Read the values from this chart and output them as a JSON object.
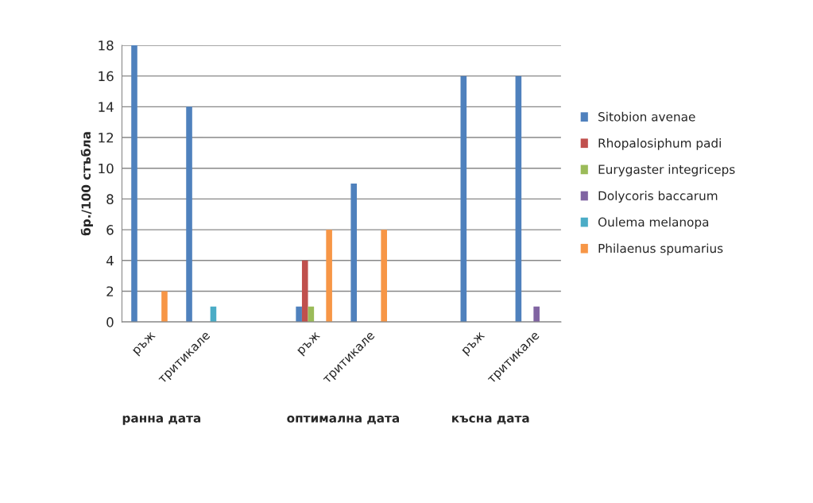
{
  "chart_data": {
    "type": "bar",
    "ylabel": "бр./100 стъбла",
    "categories": [
      "ръж",
      "тритикале",
      null,
      "ръж",
      "тритикале",
      null,
      "ръж",
      "тритикале"
    ],
    "series": [
      {
        "name": "Sitobion avenae",
        "color": "#4f81bd",
        "values": [
          18,
          14,
          null,
          1,
          9,
          null,
          16,
          16
        ]
      },
      {
        "name": "Rhopalosiphum padi",
        "color": "#c0504d",
        "values": [
          null,
          null,
          null,
          4,
          null,
          null,
          null,
          null
        ]
      },
      {
        "name": "Eurygaster integriceps",
        "color": "#9bbb59",
        "values": [
          null,
          null,
          null,
          1,
          null,
          null,
          null,
          null
        ]
      },
      {
        "name": "Dolycoris baccarum",
        "color": "#8064a2",
        "values": [
          null,
          null,
          null,
          null,
          null,
          null,
          null,
          1
        ]
      },
      {
        "name": "Oulema melanopa",
        "color": "#4bacc6",
        "values": [
          null,
          1,
          null,
          null,
          null,
          null,
          null,
          null
        ]
      },
      {
        "name": "Philaenus spumarius",
        "color": "#f79646",
        "values": [
          2,
          null,
          null,
          6,
          6,
          null,
          null,
          null
        ]
      }
    ],
    "annotations": [
      "ранна дата",
      "оптимална дата",
      "късна дата"
    ],
    "ylim": [
      0,
      18
    ],
    "yticks": [
      0,
      2,
      4,
      6,
      8,
      10,
      12,
      14,
      16,
      18
    ],
    "grid": "y",
    "legend": "right"
  }
}
